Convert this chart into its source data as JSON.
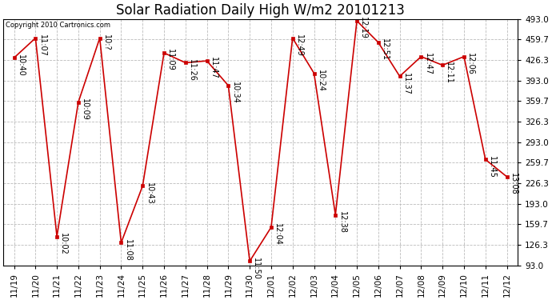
{
  "title": "Solar Radiation Daily High W/m2 20101213",
  "copyright": "Copyright 2010 Cartronics.com",
  "x_labels": [
    "11/19",
    "11/20",
    "11/21",
    "11/22",
    "11/23",
    "11/24",
    "11/25",
    "11/26",
    "11/27",
    "11/28",
    "11/29",
    "11/30",
    "12/01",
    "12/02",
    "12/03",
    "12/04",
    "12/05",
    "12/06",
    "12/07",
    "12/08",
    "12/09",
    "12/10",
    "12/11",
    "12/12"
  ],
  "y_values": [
    430,
    462,
    140,
    358,
    462,
    130,
    222,
    438,
    422,
    425,
    385,
    100,
    155,
    462,
    405,
    175,
    490,
    455,
    400,
    432,
    418,
    432,
    265,
    237
  ],
  "annotations": [
    "10:40",
    "11:07",
    "10:02",
    "10:09",
    "10:?",
    "11:08",
    "10:43",
    "11:09",
    "11:26",
    "11:47",
    "10:34",
    "11:50",
    "12:04",
    "12:49",
    "10:24",
    "12:38",
    "12:19",
    "12:51",
    "11:37",
    "12:47",
    "12:11",
    "12:06",
    "11:45",
    "13:08"
  ],
  "y_ticks": [
    93.0,
    126.3,
    159.7,
    193.0,
    226.3,
    259.7,
    293.0,
    326.3,
    359.7,
    393.0,
    426.3,
    459.7,
    493.0
  ],
  "y_min": 93.0,
  "y_max": 493.0,
  "line_color": "#cc0000",
  "marker_color": "#cc0000",
  "bg_color": "#ffffff",
  "grid_color": "#bbbbbb",
  "title_fontsize": 12,
  "annotation_fontsize": 7,
  "copyright_fontsize": 6,
  "tick_fontsize": 7.5,
  "ytick_fontsize": 7.5
}
